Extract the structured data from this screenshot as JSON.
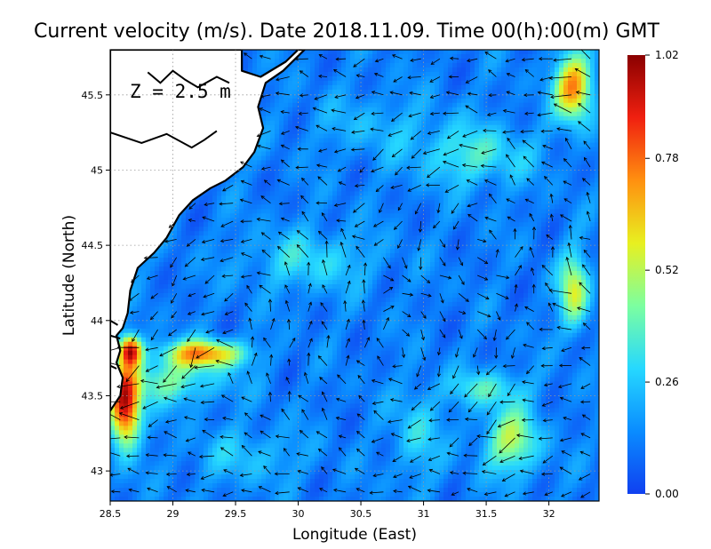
{
  "chart_data": {
    "type": "heatmap",
    "subtype": "ocean current velocity map with vector arrows",
    "title": "Current velocity (m/s). Date 2018.11.09. Time 00(h):00(m) GMT",
    "xlabel": "Longitude (East)",
    "ylabel": "Latitude (North)",
    "annotation": "Z = 2.5 m",
    "xlim": [
      28.5,
      32.4
    ],
    "ylim": [
      42.8,
      45.8
    ],
    "x_ticks": [
      {
        "value": 28.5,
        "label": "28.5"
      },
      {
        "value": 29,
        "label": "29"
      },
      {
        "value": 29.5,
        "label": "29.5"
      },
      {
        "value": 30,
        "label": "30"
      },
      {
        "value": 30.5,
        "label": "30.5"
      },
      {
        "value": 31,
        "label": "31"
      },
      {
        "value": 31.5,
        "label": "31.5"
      },
      {
        "value": 32,
        "label": "32"
      }
    ],
    "y_ticks": [
      {
        "value": 43,
        "label": "43"
      },
      {
        "value": 43.5,
        "label": "43.5"
      },
      {
        "value": 44,
        "label": "44"
      },
      {
        "value": 44.5,
        "label": "44.5"
      },
      {
        "value": 45,
        "label": "45"
      },
      {
        "value": 45.5,
        "label": "45.5"
      }
    ],
    "grid": true,
    "grid_style": "dotted",
    "colorbar": {
      "min": 0.0,
      "max": 1.02,
      "ticks": [
        {
          "value": 0.0,
          "label": "0.00"
        },
        {
          "value": 0.26,
          "label": "0.26"
        },
        {
          "value": 0.52,
          "label": "0.52"
        },
        {
          "value": 0.78,
          "label": "0.78"
        },
        {
          "value": 1.02,
          "label": "1.02"
        }
      ],
      "colormap": "jet",
      "stops": [
        "#1040f0",
        "#0a8cff",
        "#26d8ff",
        "#7cffa0",
        "#e8f020",
        "#ff9010",
        "#f02010",
        "#8a0000"
      ]
    },
    "land_color": "#ffffff",
    "coast_color": "#000000",
    "speed_field": {
      "background": 0.12,
      "features": [
        {
          "lon": 28.62,
          "lat": 43.42,
          "speed": 0.95,
          "rlon": 0.12,
          "rlat": 0.25
        },
        {
          "lon": 28.66,
          "lat": 43.8,
          "speed": 0.88,
          "rlon": 0.09,
          "rlat": 0.1
        },
        {
          "lon": 29.25,
          "lat": 43.78,
          "speed": 0.7,
          "rlon": 0.32,
          "rlat": 0.09
        },
        {
          "lon": 28.95,
          "lat": 43.6,
          "speed": 0.4,
          "rlon": 0.45,
          "rlat": 0.15
        },
        {
          "lon": 32.2,
          "lat": 45.55,
          "speed": 0.75,
          "rlon": 0.15,
          "rlat": 0.22
        },
        {
          "lon": 32.2,
          "lat": 44.2,
          "speed": 0.55,
          "rlon": 0.12,
          "rlat": 0.25
        },
        {
          "lon": 31.7,
          "lat": 43.2,
          "speed": 0.5,
          "rlon": 0.22,
          "rlat": 0.22
        },
        {
          "lon": 31.5,
          "lat": 43.55,
          "speed": 0.35,
          "rlon": 0.3,
          "rlat": 0.12
        },
        {
          "lon": 30.1,
          "lat": 44.4,
          "speed": 0.3,
          "rlon": 0.5,
          "rlat": 0.2
        },
        {
          "lon": 30.95,
          "lat": 43.25,
          "speed": 0.3,
          "rlon": 0.18,
          "rlat": 0.3
        },
        {
          "lon": 31.4,
          "lat": 45.1,
          "speed": 0.35,
          "rlon": 0.45,
          "rlat": 0.2
        },
        {
          "lon": 30.6,
          "lat": 45.3,
          "speed": 0.22,
          "rlon": 0.5,
          "rlat": 0.2
        },
        {
          "lon": 29.6,
          "lat": 43.1,
          "speed": 0.25,
          "rlon": 0.45,
          "rlat": 0.18
        }
      ]
    },
    "flow_field": {
      "base_direction_deg": 175,
      "vortices": [
        {
          "lon": 31.4,
          "lat": 44.8,
          "strength": 1.0,
          "sense": "anticlockwise"
        },
        {
          "lon": 29.6,
          "lat": 44.3,
          "strength": 0.8,
          "sense": "anticlockwise"
        },
        {
          "lon": 30.8,
          "lat": 43.6,
          "strength": 0.8,
          "sense": "clockwise"
        }
      ],
      "arrow_spacing_deg": {
        "lon": 0.15,
        "lat": 0.12
      }
    },
    "land_polygons": [
      [
        [
          28.5,
          45.8
        ],
        [
          29.55,
          45.8
        ],
        [
          29.55,
          45.66
        ],
        [
          29.7,
          45.62
        ],
        [
          29.9,
          45.72
        ],
        [
          30.0,
          45.8
        ],
        [
          30.05,
          45.8
        ],
        [
          29.88,
          45.66
        ],
        [
          29.74,
          45.58
        ],
        [
          29.68,
          45.42
        ],
        [
          29.72,
          45.28
        ],
        [
          29.65,
          45.12
        ],
        [
          29.56,
          45.02
        ],
        [
          29.42,
          44.93
        ],
        [
          29.3,
          44.88
        ],
        [
          29.16,
          44.8
        ],
        [
          29.05,
          44.7
        ],
        [
          28.95,
          44.55
        ],
        [
          28.85,
          44.45
        ],
        [
          28.72,
          44.35
        ],
        [
          28.66,
          44.2
        ],
        [
          28.64,
          44.05
        ],
        [
          28.6,
          43.95
        ],
        [
          28.55,
          43.9
        ],
        [
          28.58,
          43.8
        ],
        [
          28.55,
          43.72
        ],
        [
          28.6,
          43.62
        ],
        [
          28.58,
          43.5
        ],
        [
          28.5,
          43.4
        ],
        [
          28.5,
          43.4
        ]
      ]
    ],
    "coast_lines": [
      [
        [
          28.5,
          45.25
        ],
        [
          28.75,
          45.18
        ],
        [
          28.95,
          45.24
        ],
        [
          29.15,
          45.15
        ],
        [
          29.25,
          45.2
        ],
        [
          29.35,
          45.26
        ]
      ],
      [
        [
          28.8,
          45.65
        ],
        [
          28.9,
          45.58
        ],
        [
          29.0,
          45.66
        ],
        [
          29.1,
          45.6
        ],
        [
          29.2,
          45.55
        ],
        [
          29.35,
          45.62
        ],
        [
          29.45,
          45.58
        ]
      ],
      [
        [
          28.5,
          44.0
        ],
        [
          28.56,
          43.97
        ]
      ],
      [
        [
          28.5,
          43.9
        ],
        [
          28.58,
          43.88
        ]
      ],
      [
        [
          28.5,
          43.7
        ],
        [
          28.55,
          43.68
        ]
      ]
    ]
  }
}
